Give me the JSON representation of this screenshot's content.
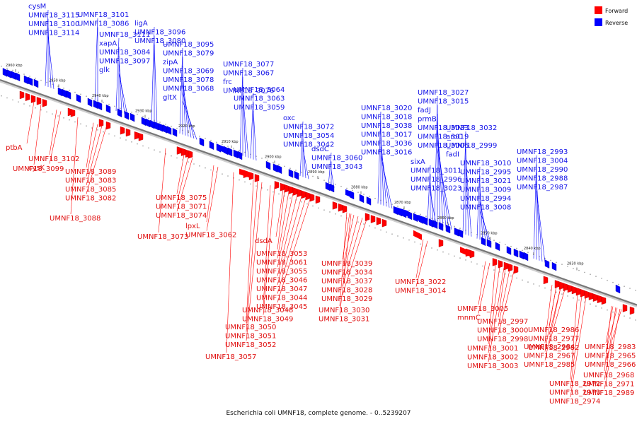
{
  "caption": "Escherichia coli UMNF18, complete genome. - 0..5239207",
  "legend": [
    {
      "label": "Forward",
      "color": "#ff0000"
    },
    {
      "label": "Reverse",
      "color": "#0000ff"
    }
  ],
  "colors": {
    "forward": "#ff0000",
    "reverse": "#0000ff",
    "backbone": "#777777",
    "forward_label": "#e01010",
    "reverse_label": "#1515e8"
  },
  "ticks": [
    "2960 kbp",
    "2950 kbp",
    "2940 kbp",
    "2930 kbp",
    "2920 kbp",
    "2910 kbp",
    "2900 kbp",
    "2890 kbp",
    "2880 kbp",
    "2870 kbp",
    "2860 kbp",
    "2850 kbp",
    "2840 kbp",
    "2830 kbp"
  ],
  "reverse_labels": [
    "cysM",
    "UMNF18_3115",
    "UMNF18_3100",
    "UMNF18_3114",
    "UMNF18_3101",
    "UMNF18_3086",
    "UMNF18_3111",
    "xapA",
    "UMNF18_3084",
    "UMNF18_3097",
    "glk",
    "ligA",
    "UMNF18_3096",
    "UMNF18_3080",
    "UMNF18_3095",
    "UMNF18_3079",
    "zipA",
    "UMNF18_3069",
    "UMNF18_3078",
    "UMNF18_3068",
    "gltX",
    "UMNF18_3077",
    "UMNF18_3067",
    "frc",
    "UMNF18_3076",
    "UMNF18_3064",
    "UMNF18_3063",
    "UMNF18_3059",
    "oxc",
    "UMNF18_3072",
    "UMNF18_3054",
    "UMNF18_3042",
    "dsdC",
    "UMNF18_3060",
    "UMNF18_3043",
    "UMNF18_3020",
    "UMNF18_3018",
    "UMNF18_3038",
    "UMNF18_3017",
    "UMNF18_3036",
    "UMNF18_3016",
    "UMNF18_3027",
    "UMNF18_3015",
    "fadJ",
    "prmB",
    "UMNF18_3033",
    "UMNF18_3019",
    "UMNF18_3006",
    "UMNF18_3032",
    "aroC",
    "UMNF18_2999",
    "fadI",
    "sixA",
    "UMNF18_3011",
    "UMNF18_2996",
    "UMNF18_3023",
    "UMNF18_3010",
    "UMNF18_2995",
    "UMNF18_3021",
    "UMNF18_3009",
    "UMNF18_2994",
    "UMNF18_3008",
    "UMNF18_2993",
    "UMNF18_3004",
    "UMNF18_2990",
    "UMNF18_2988",
    "UMNF18_2987"
  ],
  "forward_labels": [
    "ptbA",
    "UMNF18_3102",
    "cysK",
    "UMNF18_3099",
    "UMNF18_3089",
    "UMNF18_3083",
    "UMNF18_3085",
    "UMNF18_3082",
    "UMNF18_3088",
    "UMNF18_3075",
    "UMNF18_3071",
    "UMNF18_3074",
    "lpxL",
    "UMNF18_3062",
    "UMNF18_3073",
    "dsdA",
    "UMNF18_3053",
    "UMNF18_3061",
    "UMNF18_3055",
    "UMNF18_3046",
    "UMNF18_3047",
    "UMNF18_3044",
    "UMNF18_3045",
    "UMNF18_3048",
    "UMNF18_3049",
    "UMNF18_3050",
    "UMNF18_3051",
    "UMNF18_3052",
    "UMNF18_3057",
    "UMNF18_3039",
    "UMNF18_3034",
    "UMNF18_3037",
    "UMNF18_3028",
    "UMNF18_3029",
    "UMNF18_3030",
    "UMNF18_3031",
    "UMNF18_3022",
    "UMNF18_3014",
    "UMNF18_3005",
    "mnmC",
    "UMNF18_2997",
    "UMNF18_3000",
    "UMNF18_2998",
    "UMNF18_3001",
    "UMNF18_3002",
    "UMNF18_3003",
    "UMNF18_2986",
    "UMNF18_2977",
    "UMNF18_2982",
    "UMNF18_2983",
    "UMNF18_2965",
    "UMNF18_2966",
    "UMNF18_2984",
    "UMNF18_2967",
    "UMNF18_2985",
    "UMNF18_2968",
    "UMNF18_2971",
    "UMNF18_2989",
    "UMNF18_2972",
    "UMNF18_2973",
    "UMNF18_2974"
  ]
}
